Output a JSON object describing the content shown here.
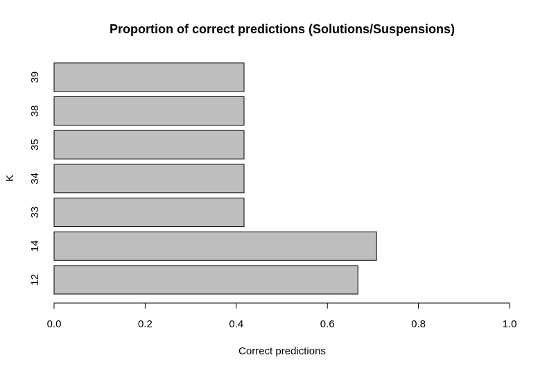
{
  "chart_data": {
    "type": "bar",
    "orientation": "horizontal",
    "title": "Proportion of correct predictions (Solutions/Suspensions)",
    "xlabel": "Correct predictions",
    "ylabel": "K",
    "xlim": [
      0,
      1
    ],
    "xticks": [
      "0.0",
      "0.2",
      "0.4",
      "0.6",
      "0.8",
      "1.0"
    ],
    "categories": [
      "12",
      "14",
      "33",
      "34",
      "35",
      "38",
      "39"
    ],
    "values": [
      0.667,
      0.708,
      0.417,
      0.417,
      0.417,
      0.417,
      0.417
    ],
    "bar_color": "#bebebe",
    "grid": false,
    "legend": "none"
  }
}
